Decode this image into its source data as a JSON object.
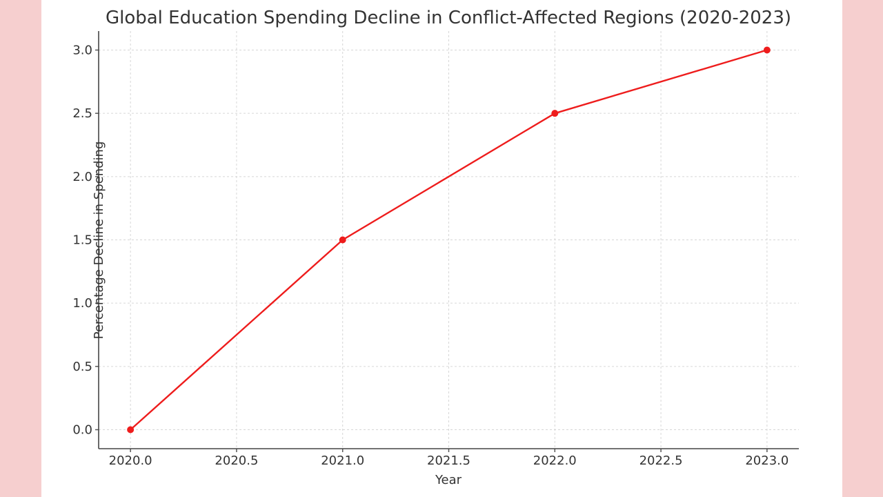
{
  "chart_data": {
    "type": "line",
    "title": "Global Education Spending Decline in Conflict-Affected Regions (2020-2023)",
    "xlabel": "Year",
    "ylabel": "Percentage Decline in Spending",
    "x": [
      2020,
      2021,
      2022,
      2023
    ],
    "series": [
      {
        "values": [
          0.0,
          1.5,
          2.5,
          3.0
        ]
      }
    ],
    "xlim": [
      2019.85,
      2023.15
    ],
    "ylim": [
      -0.15,
      3.15
    ],
    "xticks": [
      "2020.0",
      "2020.5",
      "2021.0",
      "2021.5",
      "2022.0",
      "2022.5",
      "2023.0"
    ],
    "yticks": [
      "0.0",
      "0.5",
      "1.0",
      "1.5",
      "2.0",
      "2.5",
      "3.0"
    ],
    "grid": true,
    "line_color": "#ee1c1c",
    "page_background": "#f6cfcf",
    "plot_background": "#ffffff"
  }
}
